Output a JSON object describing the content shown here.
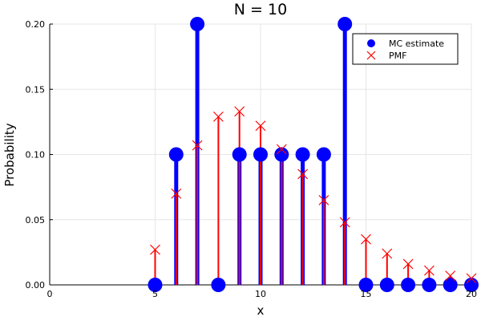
{
  "chart_data": {
    "type": "scatter",
    "title": "N = 10",
    "xlabel": "x",
    "ylabel": "Probability",
    "xlim": [
      0,
      20
    ],
    "ylim": [
      0,
      0.2
    ],
    "xticks": [
      0,
      5,
      10,
      15,
      20
    ],
    "yticks": [
      0.0,
      0.05,
      0.1,
      0.15,
      0.2
    ],
    "xtick_labels": [
      "0",
      "5",
      "10",
      "15",
      "20"
    ],
    "ytick_labels": [
      "0.00",
      "0.05",
      "0.10",
      "0.15",
      "0.20"
    ],
    "grid": true,
    "legend_position": "top-right",
    "series": [
      {
        "name": "MC estimate",
        "color": "#0000ff",
        "marker": "circle",
        "stems": true,
        "x": [
          5,
          6,
          7,
          8,
          9,
          10,
          11,
          12,
          13,
          14,
          15,
          16,
          17,
          18,
          19,
          20
        ],
        "y": [
          0.0,
          0.1,
          0.2,
          0.0,
          0.1,
          0.1,
          0.1,
          0.1,
          0.1,
          0.2,
          0.0,
          0.0,
          0.0,
          0.0,
          0.0,
          0.0
        ]
      },
      {
        "name": "PMF",
        "color": "#ff0000",
        "marker": "x",
        "stems": true,
        "x": [
          5,
          6,
          7,
          8,
          9,
          10,
          11,
          12,
          13,
          14,
          15,
          16,
          17,
          18,
          19,
          20
        ],
        "y": [
          0.027,
          0.07,
          0.107,
          0.129,
          0.133,
          0.122,
          0.104,
          0.085,
          0.065,
          0.048,
          0.035,
          0.024,
          0.016,
          0.011,
          0.007,
          0.005
        ]
      }
    ]
  }
}
